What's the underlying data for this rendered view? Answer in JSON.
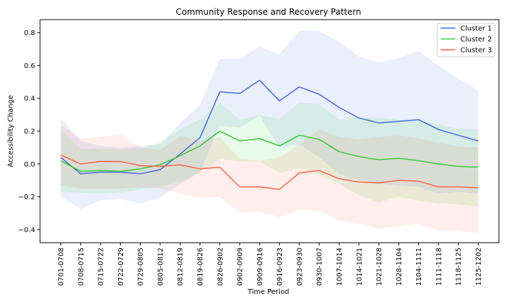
{
  "chart_data": {
    "type": "line",
    "title": "Community Response and Recovery Pattern",
    "xlabel": "Time Period",
    "ylabel": "Accessibility Change",
    "x": [
      "0701-0708",
      "0708-0715",
      "0715-0722",
      "0722-0729",
      "0729-0805",
      "0805-0812",
      "0812-0819",
      "0819-0826",
      "0826-0902",
      "0902-0909",
      "0909-0916",
      "0916-0923",
      "0923-0930",
      "0930-1007",
      "1007-1014",
      "1014-1021",
      "1021-1028",
      "1028-1104",
      "1104-1111",
      "1111-1118",
      "1118-1125",
      "1125-1202"
    ],
    "ylim": [
      -0.48,
      0.88
    ],
    "yticks": [
      -0.4,
      -0.2,
      0.0,
      0.2,
      0.4,
      0.6,
      0.8
    ],
    "ytick_labels": [
      "−0.4",
      "−0.2",
      "0.0",
      "0.2",
      "0.4",
      "0.6",
      "0.8"
    ],
    "grid": false,
    "legend_position": "top-right",
    "series": [
      {
        "name": "Cluster 1",
        "color": "#4169e1",
        "values": [
          0.04,
          -0.06,
          -0.05,
          -0.05,
          -0.06,
          -0.035,
          0.06,
          0.16,
          0.44,
          0.43,
          0.51,
          0.385,
          0.47,
          0.425,
          0.345,
          0.28,
          0.25,
          0.26,
          0.27,
          0.21,
          0.175,
          0.14
        ],
        "upper": [
          0.28,
          0.14,
          0.11,
          0.1,
          0.11,
          0.12,
          0.25,
          0.36,
          0.64,
          0.64,
          0.715,
          0.67,
          0.815,
          0.81,
          0.745,
          0.655,
          0.62,
          0.645,
          0.69,
          0.6,
          0.52,
          0.45
        ],
        "lower": [
          -0.2,
          -0.275,
          -0.22,
          -0.215,
          -0.24,
          -0.205,
          -0.125,
          -0.05,
          0.235,
          0.22,
          0.295,
          0.1,
          0.12,
          0.04,
          -0.06,
          -0.1,
          -0.12,
          -0.13,
          -0.14,
          -0.18,
          -0.17,
          -0.18
        ]
      },
      {
        "name": "Cluster 2",
        "color": "#32cd32",
        "values": [
          0.02,
          -0.045,
          -0.04,
          -0.045,
          -0.03,
          -0.005,
          0.05,
          0.11,
          0.2,
          0.14,
          0.155,
          0.11,
          0.175,
          0.15,
          0.075,
          0.045,
          0.025,
          0.035,
          0.02,
          0.0,
          -0.015,
          -0.02
        ],
        "upper": [
          0.21,
          0.09,
          0.095,
          0.09,
          0.095,
          0.13,
          0.21,
          0.27,
          0.375,
          0.27,
          0.3,
          0.275,
          0.375,
          0.365,
          0.27,
          0.285,
          0.28,
          0.27,
          0.265,
          0.24,
          0.215,
          0.215
        ],
        "lower": [
          -0.17,
          -0.175,
          -0.18,
          -0.175,
          -0.155,
          -0.14,
          -0.11,
          -0.05,
          0.03,
          0.015,
          0.015,
          -0.055,
          -0.025,
          -0.065,
          -0.12,
          -0.19,
          -0.235,
          -0.2,
          -0.225,
          -0.24,
          -0.245,
          -0.26
        ]
      },
      {
        "name": "Cluster 3",
        "color": "#ff6347",
        "values": [
          0.055,
          0.0,
          0.015,
          0.015,
          -0.01,
          -0.015,
          -0.005,
          -0.03,
          -0.02,
          -0.14,
          -0.14,
          -0.155,
          -0.055,
          -0.04,
          -0.09,
          -0.11,
          -0.115,
          -0.1,
          -0.105,
          -0.14,
          -0.14,
          -0.145
        ],
        "upper": [
          0.24,
          0.155,
          0.165,
          0.18,
          0.1,
          0.085,
          0.17,
          0.14,
          0.165,
          0.03,
          0.02,
          0.04,
          0.12,
          0.21,
          0.165,
          0.15,
          0.165,
          0.175,
          0.155,
          0.13,
          0.105,
          0.1
        ],
        "lower": [
          -0.13,
          -0.15,
          -0.15,
          -0.15,
          -0.14,
          -0.15,
          -0.18,
          -0.21,
          -0.2,
          -0.3,
          -0.29,
          -0.325,
          -0.28,
          -0.285,
          -0.345,
          -0.365,
          -0.395,
          -0.38,
          -0.365,
          -0.405,
          -0.41,
          -0.42
        ]
      }
    ]
  }
}
